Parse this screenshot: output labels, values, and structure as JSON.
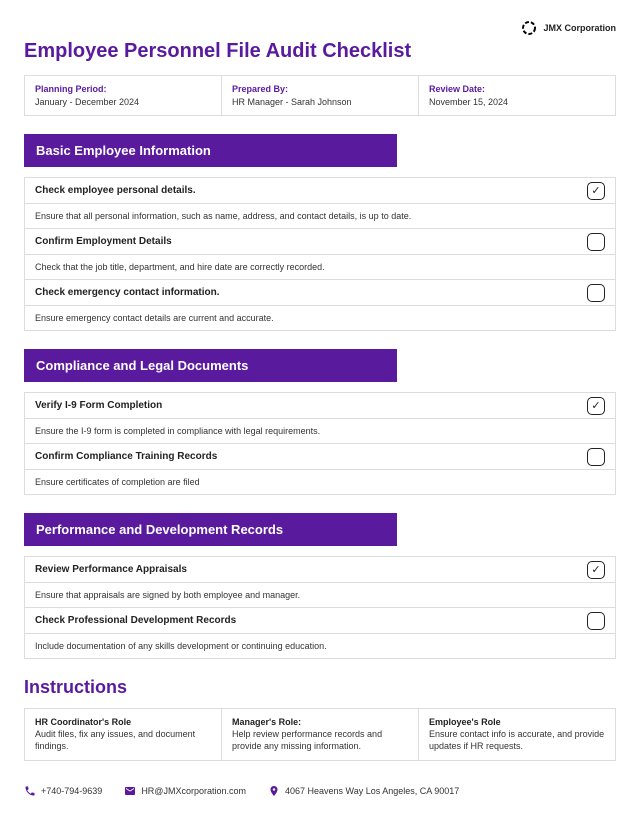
{
  "company": "JMX Corporation",
  "title": "Employee Personnel File Audit Checklist",
  "meta": [
    {
      "label": "Planning Period:",
      "value": "January - December 2024"
    },
    {
      "label": "Prepared By:",
      "value": "HR Manager - Sarah Johnson"
    },
    {
      "label": "Review Date:",
      "value": "November 15, 2024"
    }
  ],
  "sections": [
    {
      "header": "Basic Employee Information",
      "items": [
        {
          "title": "Check employee personal details.",
          "desc": "Ensure that all personal information, such as name, address, and contact details, is up to date.",
          "checked": true
        },
        {
          "title": "Confirm Employment Details",
          "desc": "Check that the job title, department, and hire date are correctly recorded.",
          "checked": false
        },
        {
          "title": "Check emergency contact information.",
          "desc": "Ensure emergency contact details are current and accurate.",
          "checked": false
        }
      ]
    },
    {
      "header": "Compliance and Legal Documents",
      "items": [
        {
          "title": "Verify I-9 Form Completion",
          "desc": "Ensure the I-9 form is completed in compliance with legal requirements.",
          "checked": true
        },
        {
          "title": "Confirm Compliance Training Records",
          "desc": "Ensure certificates of completion are filed",
          "checked": false
        }
      ]
    },
    {
      "header": "Performance and Development Records",
      "items": [
        {
          "title": "Review Performance Appraisals",
          "desc": "Ensure that appraisals are signed by both employee and manager.",
          "checked": true
        },
        {
          "title": "Check Professional Development Records",
          "desc": "Include documentation of any skills development or continuing education.",
          "checked": false
        }
      ]
    }
  ],
  "instructions_title": "Instructions",
  "instructions": [
    {
      "label": "HR Coordinator's Role",
      "value": "Audit files, fix any issues, and document findings."
    },
    {
      "label": "Manager's Role:",
      "value": "Help review performance records and provide any missing information."
    },
    {
      "label": "Employee's Role",
      "value": "Ensure contact info is accurate, and provide updates if HR requests."
    }
  ],
  "footer": {
    "phone": "+740-794-9639",
    "email": "HR@JMXcorporation.com",
    "address": "4067 Heavens Way Los Angeles, CA 90017"
  },
  "colors": {
    "primary": "#5a1a9e",
    "border": "#ddd",
    "text": "#222"
  }
}
